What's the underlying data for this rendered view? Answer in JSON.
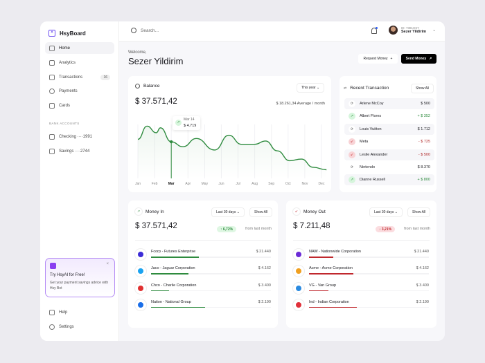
{
  "app": {
    "name": "HsyBoard"
  },
  "sidebar": {
    "items": [
      {
        "label": "Home",
        "icon": "home-icon"
      },
      {
        "label": "Analytics",
        "icon": "analytics-icon"
      },
      {
        "label": "Transactions",
        "icon": "transactions-icon",
        "badge": "16"
      },
      {
        "label": "Payments",
        "icon": "payments-icon"
      },
      {
        "label": "Cards",
        "icon": "cards-icon"
      }
    ],
    "section": "BANK ACCOUNTS",
    "accounts": [
      {
        "label": "Checking ····1991"
      },
      {
        "label": "Savings ····2744"
      }
    ],
    "promo": {
      "title": "Try HsyAI for Free!",
      "desc": "Get your payment savings advice with Hsy Bot",
      "close": "×"
    },
    "bottom": [
      {
        "label": "Help"
      },
      {
        "label": "Settings"
      }
    ]
  },
  "header": {
    "search_placeholder": "Search...",
    "user_id": "ID: 7381HSY",
    "user_name": "Sezer Yildirim"
  },
  "welcome": {
    "greeting": "Welcome,",
    "name": "Sezer Yildirim",
    "request": "Request Money",
    "request_icon": "+",
    "send": "Send Money",
    "send_icon": "↗"
  },
  "balance": {
    "title": "Balance",
    "period": "This year",
    "amount": "$ 37.571,42",
    "average": "$ 18.261,34 Average / month",
    "tooltip": {
      "date": "Mar 14",
      "amount": "$ 4.719"
    }
  },
  "chart_data": {
    "type": "area",
    "categories": [
      "Jan",
      "Feb",
      "Mar",
      "Apr",
      "May",
      "Jun",
      "Jul",
      "Aug",
      "Sep",
      "Oct",
      "Nov",
      "Dec"
    ],
    "highlight": "Mar",
    "line_color": "#2e8b3e",
    "x": [
      0,
      0.55,
      1.1,
      1.35,
      2.0,
      2.7,
      3.5,
      4.6,
      5.45,
      6.2,
      7.0,
      7.65,
      8.35,
      9.1,
      9.8,
      10.5,
      11.3
    ],
    "y": [
      61,
      77,
      69,
      75,
      58,
      52,
      62,
      48,
      66,
      55,
      55,
      59,
      47,
      35,
      37,
      27,
      24
    ],
    "ylim": [
      0,
      100
    ],
    "grid": "vertical"
  },
  "recent": {
    "title": "Recent Transaction",
    "show_all": "Show All",
    "items": [
      {
        "name": "Arlene McCoy",
        "amount": "$ 500",
        "type": "neutral"
      },
      {
        "name": "Albert Flores",
        "amount": "+ $ 352",
        "type": "in"
      },
      {
        "name": "Louis Vuitton",
        "amount": "$ 1.712",
        "type": "neutral"
      },
      {
        "name": "Meta",
        "amount": "- $ 725",
        "type": "out"
      },
      {
        "name": "Leslie Alexander",
        "amount": "- $ 500",
        "type": "out"
      },
      {
        "name": "Nintendo",
        "amount": "$ 8.370",
        "type": "neutral"
      },
      {
        "name": "Dianne Russell",
        "amount": "+ $ 800",
        "type": "in"
      }
    ]
  },
  "money_in": {
    "title": "Money In",
    "period": "Last 30 days",
    "show_all": "Show All",
    "amount": "$ 37.571,42",
    "change": "6,72%",
    "change_note": "from last month",
    "color": "#2e8b3e",
    "items": [
      {
        "name": "Fcorp - Futures Enterprise",
        "amount": "$ 21.440",
        "share": 0.4,
        "logo": "#3b2bd6"
      },
      {
        "name": "Jaco - Jaguar Corporation",
        "amount": "$ 4.162",
        "share": 0.31,
        "logo": "#1aa3f0"
      },
      {
        "name": "Chco - Charlie Corporation",
        "amount": "$ 3.400",
        "share": 0.15,
        "logo": "#e03030"
      },
      {
        "name": "Nation - National Group",
        "amount": "$ 2.190",
        "share": 0.45,
        "logo": "#1a6ee8"
      }
    ]
  },
  "money_out": {
    "title": "Money Out",
    "period": "Last 30 days",
    "show_all": "Show All",
    "amount": "$ 7.211,48",
    "change": "3,21%",
    "change_note": "from last month",
    "color": "#c0282d",
    "items": [
      {
        "name": "NAW - Nationwide Corporation",
        "amount": "$ 21.440",
        "share": 0.2,
        "logo": "#6b2bd6"
      },
      {
        "name": "Acme - Acme Corporation",
        "amount": "$ 4.162",
        "share": 0.37,
        "logo": "#f0a020"
      },
      {
        "name": "VG - Van Group",
        "amount": "$ 3.400",
        "share": 0.16,
        "logo": "#2a8ae0"
      },
      {
        "name": "Ind - Indian Corporation",
        "amount": "$ 2.190",
        "share": 0.4,
        "logo": "#e0303a"
      }
    ]
  }
}
